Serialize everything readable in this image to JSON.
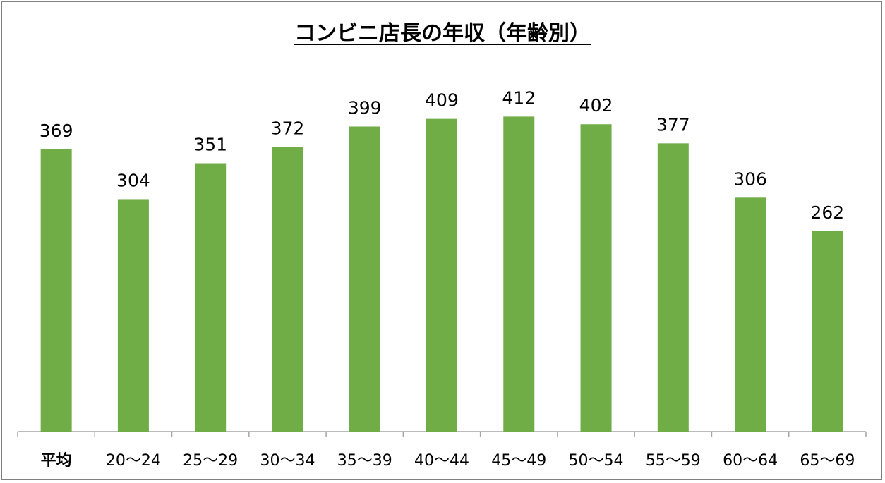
{
  "chart_data": {
    "type": "bar",
    "title": "コンビニ店長の年収（年齢別）",
    "categories": [
      "平均",
      "20～24",
      "25～29",
      "30～34",
      "35～39",
      "40～44",
      "45～49",
      "50～54",
      "55～59",
      "60～64",
      "65～69"
    ],
    "values": [
      369,
      304,
      351,
      372,
      399,
      409,
      412,
      402,
      377,
      306,
      262
    ],
    "xlabel": "",
    "ylabel": "",
    "ylim": [
      0,
      450
    ],
    "grid": false,
    "legend": "none",
    "bar_color": "#70ad47"
  }
}
